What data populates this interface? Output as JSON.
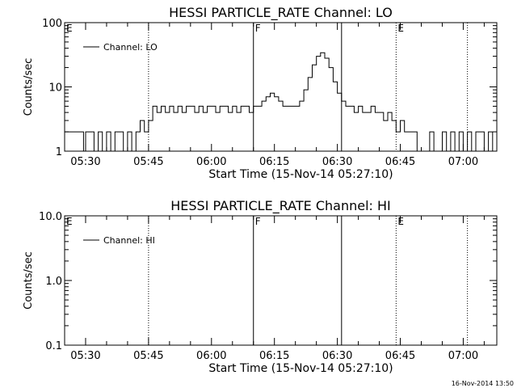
{
  "timestamp": "16-Nov-2014 13:50",
  "chart_data": [
    {
      "type": "line",
      "title": "HESSI PARTICLE_RATE Channel: LO",
      "xlabel": "Start Time (15-Nov-14 05:27:10)",
      "ylabel": "Counts/sec",
      "yscale": "log",
      "ylim": [
        1,
        100
      ],
      "yticks": [
        {
          "v": 1,
          "label": "1"
        },
        {
          "v": 10,
          "label": "10"
        },
        {
          "v": 100,
          "label": "100"
        }
      ],
      "xlim": [
        "05:25",
        "07:08"
      ],
      "xticks": [
        "05:30",
        "05:45",
        "06:00",
        "06:15",
        "06:30",
        "06:45",
        "07:00"
      ],
      "legend": {
        "label": "Channel: LO",
        "position": "top-left"
      },
      "markers": [
        {
          "time": "05:25",
          "label": "E",
          "style": "solid"
        },
        {
          "time": "05:45",
          "label": "",
          "style": "dotted"
        },
        {
          "time": "06:10",
          "label": "F",
          "style": "solid"
        },
        {
          "time": "06:31",
          "label": "",
          "style": "solid"
        },
        {
          "time": "06:44",
          "label": "E",
          "style": "dotted"
        },
        {
          "time": "07:01",
          "label": "",
          "style": "dotted"
        }
      ],
      "series": [
        {
          "name": "Channel: LO",
          "x": [
            "05:25",
            "05:29",
            "05:29:30",
            "05:30",
            "05:31",
            "05:32",
            "05:33",
            "05:34",
            "05:35",
            "05:36",
            "05:37",
            "05:38",
            "05:39",
            "05:40",
            "05:41",
            "05:42",
            "05:43",
            "05:44",
            "05:45",
            "05:46",
            "05:47",
            "05:48",
            "05:49",
            "05:50",
            "05:51",
            "05:52",
            "05:53",
            "05:54",
            "05:55",
            "05:56",
            "05:57",
            "05:58",
            "05:59",
            "06:00",
            "06:01",
            "06:02",
            "06:03",
            "06:04",
            "06:05",
            "06:06",
            "06:07",
            "06:08",
            "06:09",
            "06:10",
            "06:11",
            "06:12",
            "06:13",
            "06:14",
            "06:15",
            "06:16",
            "06:17",
            "06:18",
            "06:19",
            "06:20",
            "06:21",
            "06:22",
            "06:23",
            "06:24",
            "06:25",
            "06:26",
            "06:27",
            "06:28",
            "06:29",
            "06:30",
            "06:31",
            "06:32",
            "06:33",
            "06:34",
            "06:35",
            "06:36",
            "06:37",
            "06:38",
            "06:39",
            "06:40",
            "06:41",
            "06:42",
            "06:43",
            "06:44",
            "06:45",
            "06:46",
            "06:47",
            "06:48",
            "06:49",
            "06:50",
            "06:51",
            "06:52",
            "06:53",
            "06:54",
            "06:55",
            "06:56",
            "06:57",
            "06:58",
            "06:59",
            "07:00",
            "07:01",
            "07:02",
            "07:03",
            "07:04",
            "07:05",
            "07:06",
            "07:07"
          ],
          "y": [
            2,
            2,
            1,
            2,
            2,
            1,
            2,
            1,
            2,
            1,
            2,
            2,
            1,
            2,
            1,
            2,
            3,
            2,
            3,
            5,
            4,
            5,
            4,
            5,
            4,
            5,
            4,
            5,
            5,
            4,
            5,
            4,
            5,
            5,
            4,
            5,
            5,
            4,
            5,
            4,
            5,
            5,
            4,
            5,
            5,
            6,
            7,
            8,
            7,
            6,
            5,
            5,
            5,
            5,
            6,
            9,
            14,
            22,
            30,
            34,
            28,
            20,
            12,
            8,
            6,
            5,
            5,
            4,
            5,
            4,
            4,
            5,
            4,
            4,
            3,
            4,
            3,
            2,
            3,
            2,
            2,
            2,
            1,
            1,
            1,
            2,
            1,
            1,
            2,
            1,
            2,
            1,
            2,
            1,
            2,
            1,
            2,
            2,
            1,
            2,
            1
          ]
        }
      ]
    },
    {
      "type": "line",
      "title": "HESSI PARTICLE_RATE Channel: HI",
      "xlabel": "Start Time (15-Nov-14 05:27:10)",
      "ylabel": "Counts/sec",
      "yscale": "log",
      "ylim": [
        0.1,
        10.0
      ],
      "yticks": [
        {
          "v": 0.1,
          "label": "0.1"
        },
        {
          "v": 1.0,
          "label": "1.0"
        },
        {
          "v": 10.0,
          "label": "10.0"
        }
      ],
      "xlim": [
        "05:25",
        "07:08"
      ],
      "xticks": [
        "05:30",
        "05:45",
        "06:00",
        "06:15",
        "06:30",
        "06:45",
        "07:00"
      ],
      "legend": {
        "label": "Channel: HI",
        "position": "top-left"
      },
      "markers": [
        {
          "time": "05:25",
          "label": "E",
          "style": "solid"
        },
        {
          "time": "05:45",
          "label": "",
          "style": "dotted"
        },
        {
          "time": "06:10",
          "label": "F",
          "style": "solid"
        },
        {
          "time": "06:31",
          "label": "",
          "style": "solid"
        },
        {
          "time": "06:44",
          "label": "E",
          "style": "dotted"
        },
        {
          "time": "07:01",
          "label": "",
          "style": "dotted"
        }
      ],
      "series": [
        {
          "name": "Channel: HI",
          "x": [],
          "y": []
        }
      ]
    }
  ]
}
